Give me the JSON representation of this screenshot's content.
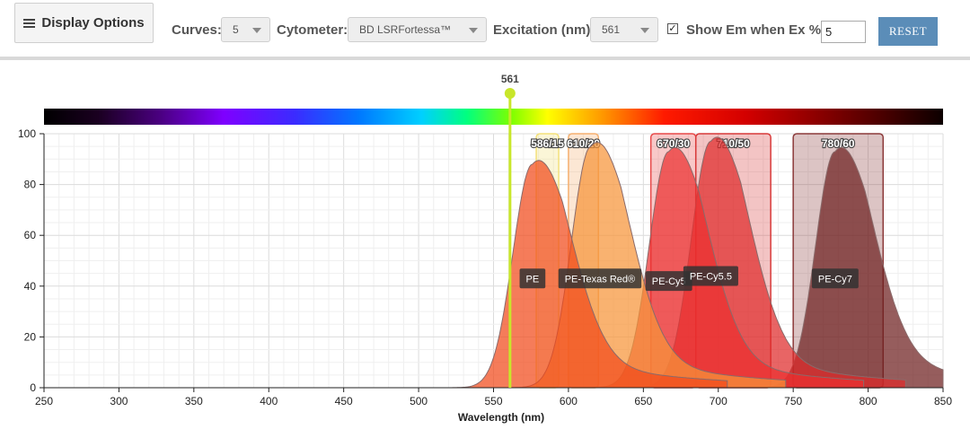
{
  "toolbar": {
    "display_options_label": "Display Options",
    "curves_label": "Curves:",
    "curves_value": "5",
    "cytometer_label": "Cytometer:",
    "cytometer_value": "BD LSRFortessa™",
    "excitation_label": "Excitation (nm):",
    "excitation_value": "561",
    "show_em_label": "Show Em when Ex % >",
    "show_em_checked": true,
    "threshold_value": "5",
    "reset_label": "RESET"
  },
  "chart_data": {
    "type": "area",
    "xlabel": "Wavelength (nm)",
    "ylabel": "",
    "xlim": [
      250,
      850
    ],
    "ylim": [
      0,
      100
    ],
    "x_ticks": [
      250,
      300,
      350,
      400,
      450,
      500,
      550,
      600,
      650,
      700,
      750,
      800,
      850
    ],
    "y_ticks": [
      0,
      20,
      40,
      60,
      80,
      100
    ],
    "excitation_line": {
      "wavelength": 561,
      "label": "561",
      "color": "#c8e62a"
    },
    "filters": [
      {
        "label": "586/15",
        "center": 586,
        "width": 15,
        "color": "#f3e07a"
      },
      {
        "label": "610/20",
        "center": 610,
        "width": 20,
        "color": "#f5b070"
      },
      {
        "label": "670/30",
        "center": 670,
        "width": 30,
        "color": "#e84848"
      },
      {
        "label": "710/50",
        "center": 710,
        "width": 50,
        "color": "#d83a3a"
      },
      {
        "label": "780/60",
        "center": 780,
        "width": 60,
        "color": "#8c3a3a"
      }
    ],
    "series": [
      {
        "name": "PE",
        "peak_nm": 576,
        "peak_value": 88,
        "color": "#f14a1a",
        "label_value": 43
      },
      {
        "name": "PE-Texas Red®",
        "peak_nm": 615,
        "peak_value": 95,
        "color": "#f79439",
        "label_value": 43
      },
      {
        "name": "PE-Cy5",
        "peak_nm": 667,
        "peak_value": 93,
        "color": "#ec2f2f",
        "label_value": 42
      },
      {
        "name": "PE-Cy5.5",
        "peak_nm": 695,
        "peak_value": 97,
        "color": "#df2a2a",
        "label_value": 44
      },
      {
        "name": "PE-Cy7",
        "peak_nm": 778,
        "peak_value": 93,
        "color": "#6e1f1f",
        "label_value": 43
      }
    ],
    "grid": true,
    "spectrum_bar": true
  }
}
